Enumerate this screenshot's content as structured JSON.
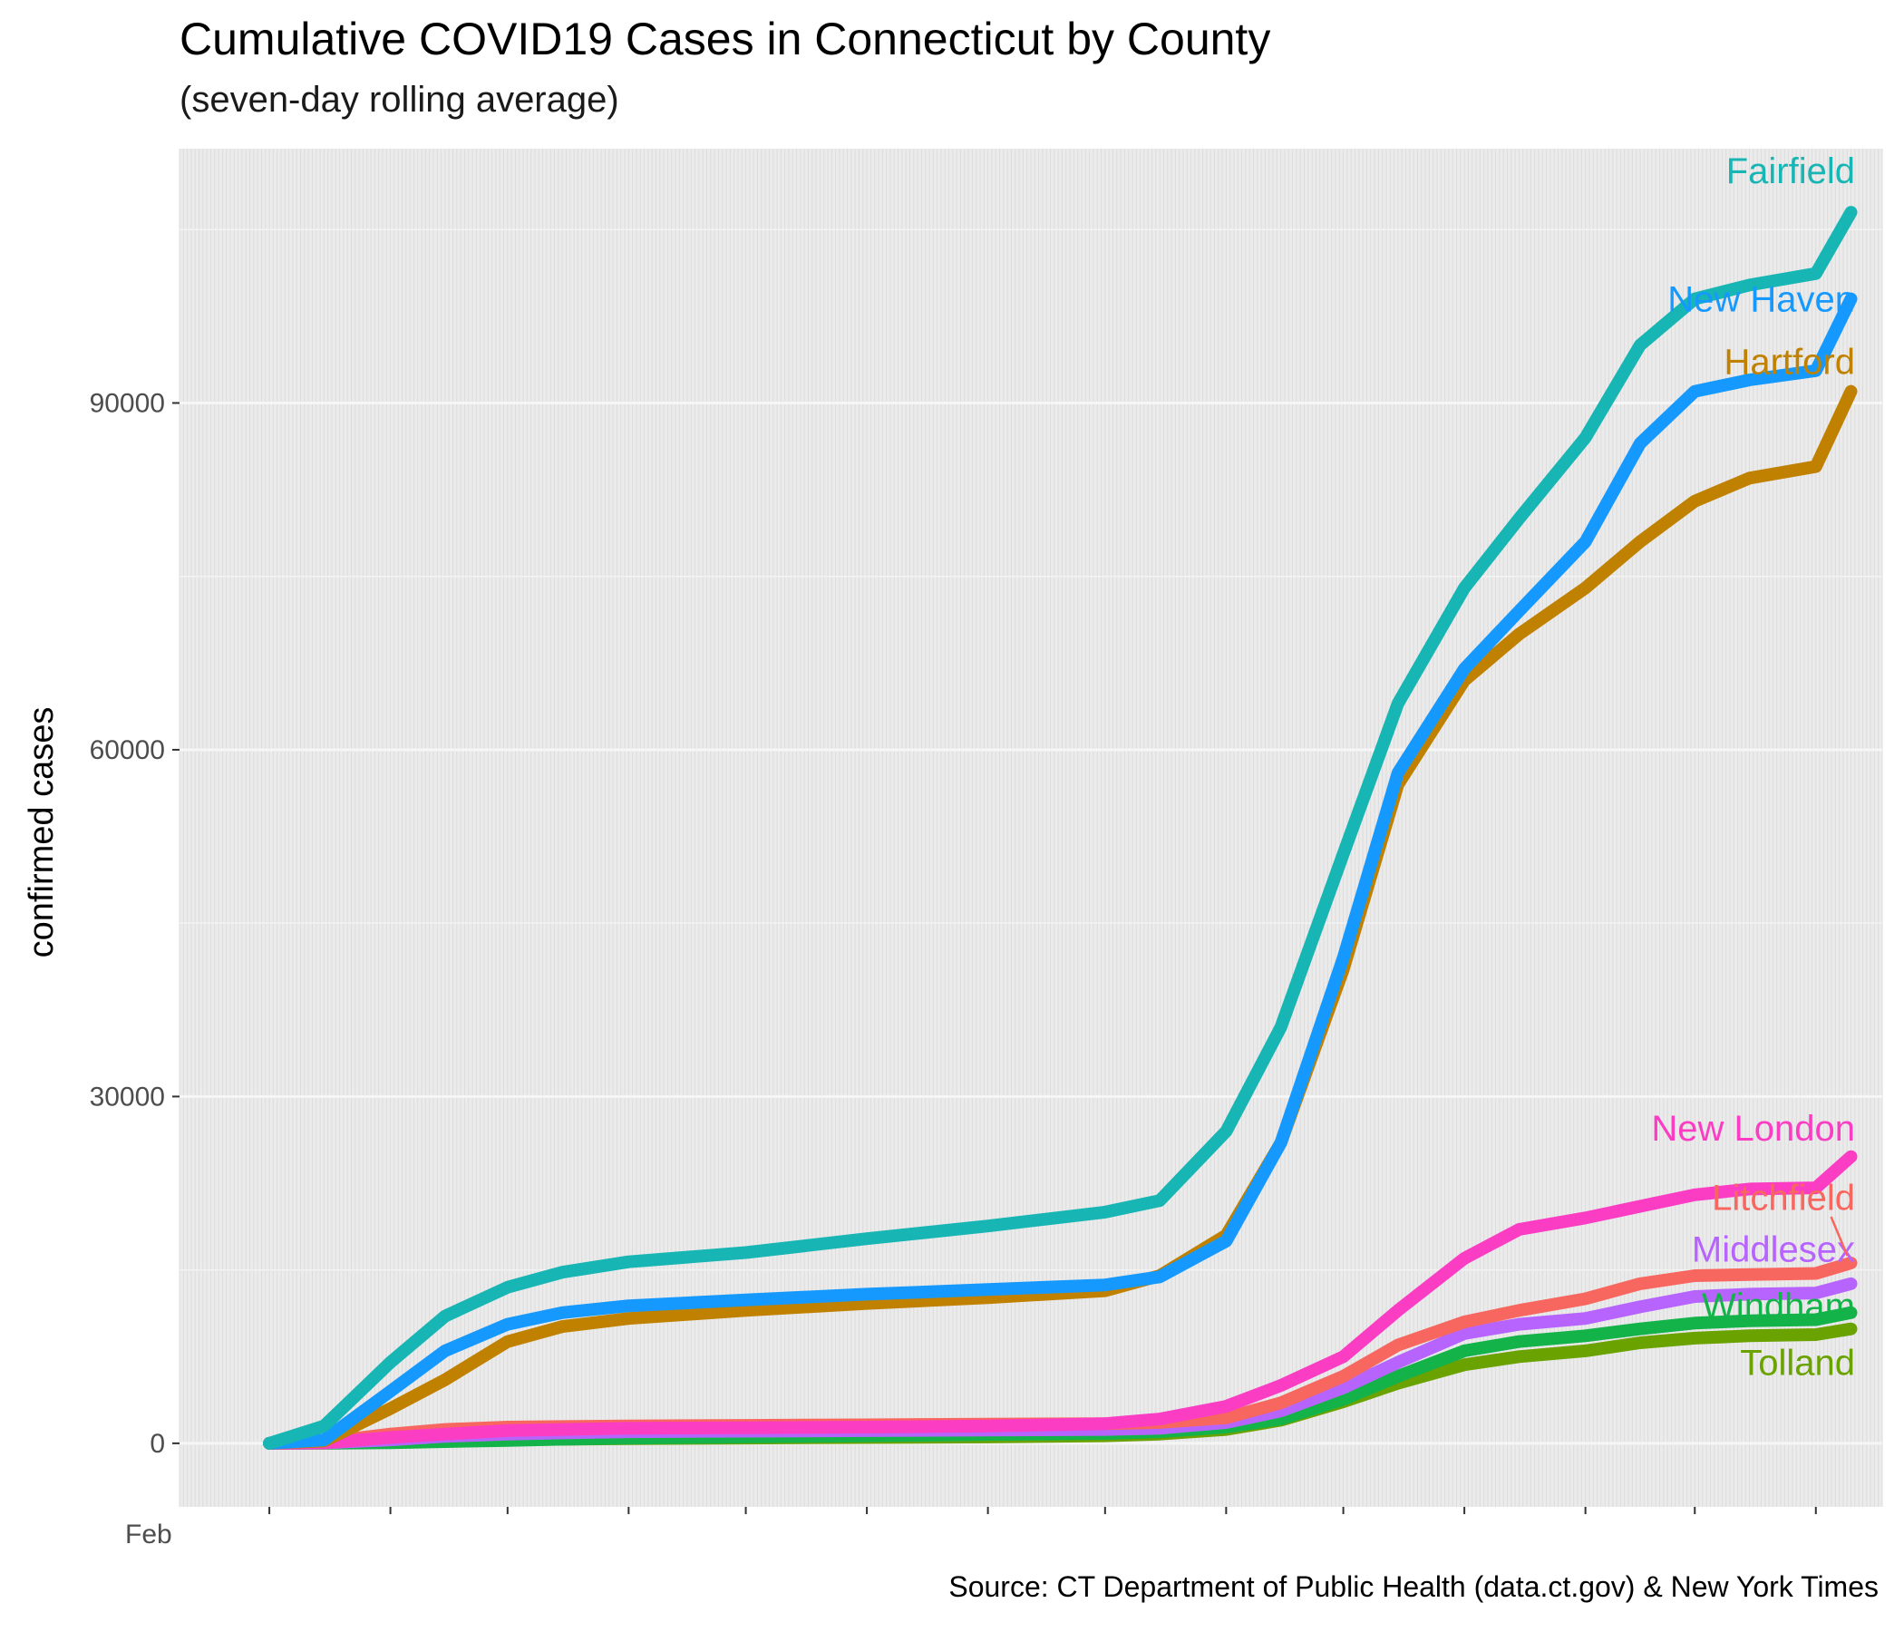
{
  "chart_data": {
    "type": "line",
    "title": "Cumulative COVID19 Cases in Connecticut by County",
    "subtitle": "(seven-day rolling average)",
    "ylabel": "confirmed cases",
    "xlabel": "",
    "caption": "Source: CT Department of Public Health (data.ct.gov) & New York Times",
    "y_ticks": [
      "0",
      "30000",
      "60000",
      "90000"
    ],
    "ylim": [
      -5500,
      112000
    ],
    "x_axis_note": "daily dates from Feb 2020 to about Apr 2021; tick labels overlap and are illegible",
    "x_tick_label_visible": "Feb",
    "xlim": [
      "2020-02-07",
      "2021-04-18"
    ],
    "grid": true,
    "legend": "direct labels at line ends (right)",
    "x": [
      "2020-03-01",
      "2020-03-15",
      "2020-04-01",
      "2020-04-15",
      "2020-05-01",
      "2020-05-15",
      "2020-06-01",
      "2020-07-01",
      "2020-08-01",
      "2020-09-01",
      "2020-10-01",
      "2020-10-15",
      "2020-11-01",
      "2020-11-15",
      "2020-12-01",
      "2020-12-15",
      "2021-01-01",
      "2021-01-15",
      "2021-02-01",
      "2021-02-15",
      "2021-03-01",
      "2021-03-15",
      "2021-04-01",
      "2021-04-10"
    ],
    "series": [
      {
        "name": "Fairfield",
        "color": "#17B5B4",
        "values": [
          0,
          1500,
          7000,
          11000,
          13500,
          14800,
          15700,
          16500,
          17700,
          18800,
          20000,
          21000,
          27000,
          36000,
          51000,
          64000,
          74000,
          80000,
          87000,
          95000,
          99000,
          100200,
          101200,
          106500
        ]
      },
      {
        "name": "New Haven",
        "color": "#1699FE",
        "values": [
          0,
          300,
          4500,
          8000,
          10300,
          11300,
          11900,
          12400,
          12900,
          13300,
          13700,
          14400,
          17500,
          26000,
          42000,
          58000,
          67000,
          72000,
          78000,
          86500,
          91000,
          92000,
          92800,
          99000
        ]
      },
      {
        "name": "Hartford",
        "color": "#C08100",
        "values": [
          0,
          200,
          3000,
          5500,
          8800,
          10100,
          10800,
          11500,
          12100,
          12600,
          13200,
          14500,
          18000,
          26000,
          41000,
          57000,
          66000,
          70000,
          74000,
          78000,
          81500,
          83500,
          84500,
          91000
        ]
      },
      {
        "name": "New London",
        "color": "#FB3DC4",
        "values": [
          0,
          30,
          500,
          800,
          1100,
          1200,
          1300,
          1350,
          1400,
          1500,
          1700,
          2100,
          3200,
          5000,
          7500,
          11500,
          16000,
          18500,
          19500,
          20500,
          21500,
          22000,
          22100,
          24800
        ]
      },
      {
        "name": "Litchfield",
        "color": "#F8675F",
        "values": [
          0,
          100,
          800,
          1200,
          1400,
          1450,
          1500,
          1550,
          1600,
          1650,
          1700,
          1800,
          2200,
          3500,
          5800,
          8500,
          10500,
          11500,
          12500,
          13800,
          14500,
          14600,
          14700,
          15600
        ]
      },
      {
        "name": "Middlesex",
        "color": "#B764FF",
        "values": [
          0,
          30,
          300,
          600,
          800,
          900,
          1000,
          1050,
          1100,
          1150,
          1200,
          1300,
          1800,
          2800,
          4800,
          7000,
          9500,
          10300,
          10800,
          11800,
          12700,
          12900,
          13000,
          13800
        ]
      },
      {
        "name": "Windham",
        "color": "#14B34A",
        "values": [
          0,
          10,
          50,
          150,
          250,
          350,
          450,
          550,
          650,
          750,
          850,
          1000,
          1400,
          2100,
          3800,
          5800,
          8000,
          8800,
          9300,
          9900,
          10400,
          10600,
          10700,
          11300
        ]
      },
      {
        "name": "Tolland",
        "color": "#6AA200",
        "values": [
          0,
          10,
          100,
          200,
          300,
          350,
          400,
          450,
          500,
          550,
          650,
          800,
          1200,
          2000,
          3600,
          5200,
          6800,
          7500,
          8000,
          8700,
          9100,
          9300,
          9400,
          9900
        ]
      }
    ]
  }
}
